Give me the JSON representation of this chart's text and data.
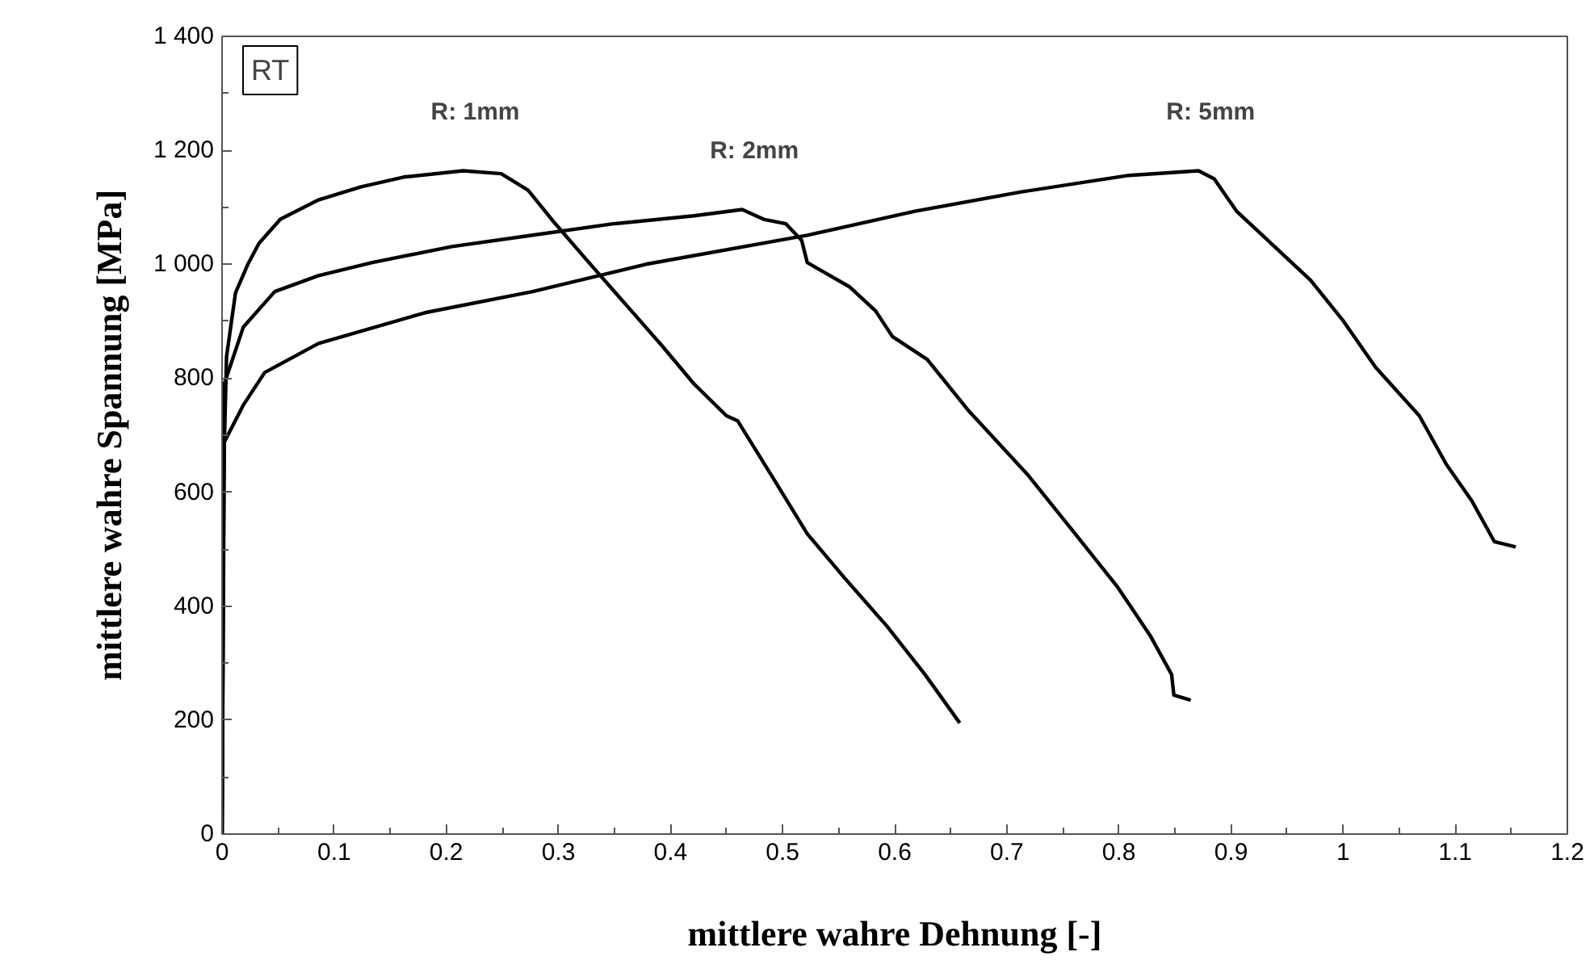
{
  "chart_data": {
    "type": "line",
    "xlabel": "mittlere wahre Dehnung [-]",
    "ylabel": "mittlere wahre Spannung [MPa]",
    "annotations": [
      "RT"
    ],
    "xlim": [
      0,
      1.2
    ],
    "ylim": [
      0,
      1400
    ],
    "xticks": [
      0,
      0.1,
      0.2,
      0.3,
      0.4,
      0.5,
      0.6,
      0.7,
      0.8,
      0.9,
      {
        "value": 1.0,
        "label": "1"
      },
      1.1,
      1.2
    ],
    "yticks": [
      0,
      200,
      400,
      600,
      800,
      {
        "value": 1000,
        "label": "1 000"
      },
      {
        "value": 1200,
        "label": "1 200"
      },
      {
        "value": 1400,
        "label": "1 400"
      }
    ],
    "grid": false,
    "marker": "none",
    "line_style": "solid",
    "series": [
      {
        "name": "R: 1mm",
        "color": "#000000",
        "x": [
          0,
          0.001,
          0.004,
          0.012,
          0.023,
          0.033,
          0.052,
          0.086,
          0.124,
          0.162,
          0.215,
          0.249,
          0.273,
          0.296,
          0.325,
          0.363,
          0.392,
          0.421,
          0.45,
          0.46,
          0.493,
          0.522,
          0.555,
          0.593,
          0.627,
          0.658
        ],
        "values": [
          0,
          603,
          838,
          950,
          1000,
          1037,
          1079,
          1113,
          1136,
          1153,
          1164,
          1159,
          1130,
          1074,
          1008,
          923,
          858,
          790,
          734,
          725,
          620,
          527,
          450,
          365,
          280,
          195
        ]
      },
      {
        "name": "R: 2mm",
        "color": "#000000",
        "x": [
          0,
          0.002,
          0.019,
          0.047,
          0.086,
          0.134,
          0.205,
          0.277,
          0.349,
          0.421,
          0.464,
          0.483,
          0.503,
          0.517,
          0.522,
          0.56,
          0.583,
          0.598,
          0.629,
          0.665,
          0.718,
          0.761,
          0.799,
          0.828,
          0.847,
          0.849,
          0.864
        ],
        "values": [
          0,
          790,
          890,
          952,
          980,
          1003,
          1031,
          1051,
          1071,
          1085,
          1096,
          1079,
          1071,
          1042,
          1003,
          960,
          918,
          873,
          833,
          745,
          632,
          527,
          433,
          348,
          280,
          244,
          235
        ]
      },
      {
        "name": "R: 5mm",
        "color": "#000000",
        "x": [
          0,
          0.002,
          0.019,
          0.038,
          0.086,
          0.181,
          0.277,
          0.378,
          0.522,
          0.618,
          0.713,
          0.809,
          0.871,
          0.885,
          0.905,
          0.928,
          0.971,
          1.0,
          1.029,
          1.068,
          1.092,
          1.115,
          1.135,
          1.154
        ],
        "values": [
          0,
          688,
          753,
          810,
          861,
          915,
          952,
          1000,
          1051,
          1093,
          1127,
          1156,
          1164,
          1150,
          1093,
          1051,
          972,
          901,
          819,
          734,
          649,
          584,
          513,
          504
        ]
      }
    ]
  }
}
